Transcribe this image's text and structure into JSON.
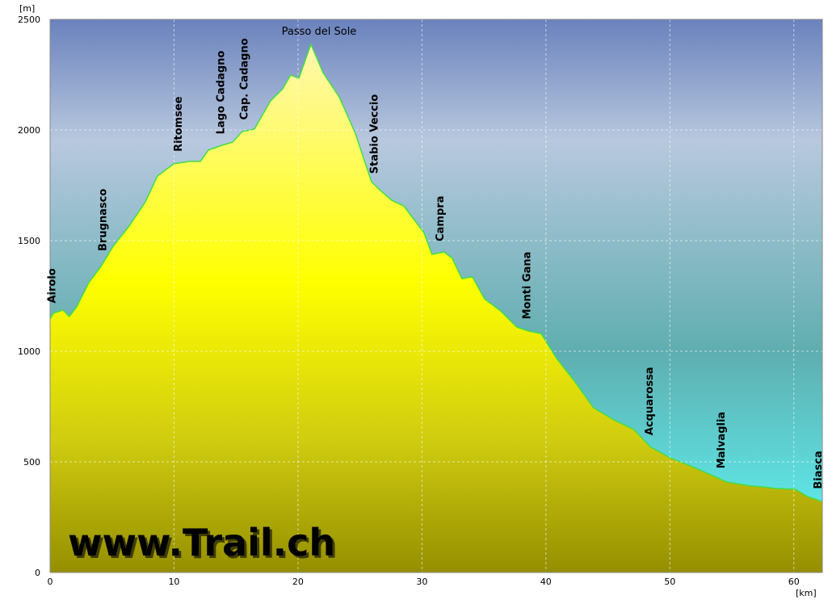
{
  "chart_data": {
    "type": "area",
    "x_unit": "[km]",
    "y_unit": "[m]",
    "watermark": "www.Trail.ch",
    "xlim": [
      0,
      62.3
    ],
    "xticks": [
      0,
      10,
      20,
      30,
      40,
      50,
      60
    ],
    "ylim": [
      0,
      2500
    ],
    "yticks": [
      0,
      500,
      1000,
      1500,
      2000,
      2500
    ],
    "grid": true,
    "line_color": "#44dd44",
    "x": [
      0,
      0.26,
      1.04,
      1.56,
      2.15,
      3.13,
      4.1,
      5.08,
      6.38,
      7.69,
      8.66,
      9.97,
      11.27,
      12.12,
      12.77,
      13.88,
      14.72,
      15.5,
      16.48,
      17.78,
      18.76,
      19.41,
      20.07,
      21.04,
      22.02,
      23.32,
      24.63,
      25.6,
      25.93,
      26.58,
      27.56,
      28.53,
      29.51,
      30.16,
      30.81,
      31.79,
      32.44,
      33.22,
      34.07,
      35.05,
      36.35,
      37.65,
      38.63,
      39.61,
      40.91,
      42.21,
      43.84,
      45.47,
      47.1,
      48.4,
      50.03,
      51.66,
      53.29,
      54.59,
      56.55,
      57.52,
      58.5,
      60.13,
      61.11,
      62.28
    ],
    "values": [
      1146,
      1172,
      1186,
      1157,
      1201,
      1310,
      1383,
      1474,
      1566,
      1675,
      1792,
      1847,
      1858,
      1858,
      1909,
      1931,
      1945,
      1993,
      2004,
      2131,
      2186,
      2248,
      2234,
      2387,
      2259,
      2150,
      1985,
      1821,
      1766,
      1730,
      1682,
      1657,
      1584,
      1536,
      1438,
      1449,
      1420,
      1328,
      1336,
      1237,
      1182,
      1109,
      1091,
      1080,
      964,
      872,
      745,
      690,
      646,
      569,
      518,
      482,
      442,
      409,
      391,
      387,
      380,
      376,
      343,
      321
    ],
    "annotations": [
      {
        "text": "Airolo",
        "x": 0.2,
        "vertical": true
      },
      {
        "text": "Brugnasco",
        "x": 4.3,
        "vertical": true
      },
      {
        "text": "Ritomsee",
        "x": 10.4,
        "vertical": true
      },
      {
        "text": "Lago Cadagno",
        "x": 13.8,
        "vertical": true
      },
      {
        "text": "Cap. Cadagno",
        "x": 15.7,
        "vertical": true
      },
      {
        "text": "Passo del Sole",
        "x": 21.7,
        "vertical": false
      },
      {
        "text": "Stabio Veccio",
        "x": 26.2,
        "vertical": true
      },
      {
        "text": "Campra",
        "x": 31.5,
        "vertical": true
      },
      {
        "text": "Monti Gana",
        "x": 38.5,
        "vertical": true
      },
      {
        "text": "Acquarossa",
        "x": 48.4,
        "vertical": true
      },
      {
        "text": "Malvaglia",
        "x": 54.2,
        "vertical": true
      },
      {
        "text": "Biasca",
        "x": 62.0,
        "vertical": true
      }
    ]
  }
}
